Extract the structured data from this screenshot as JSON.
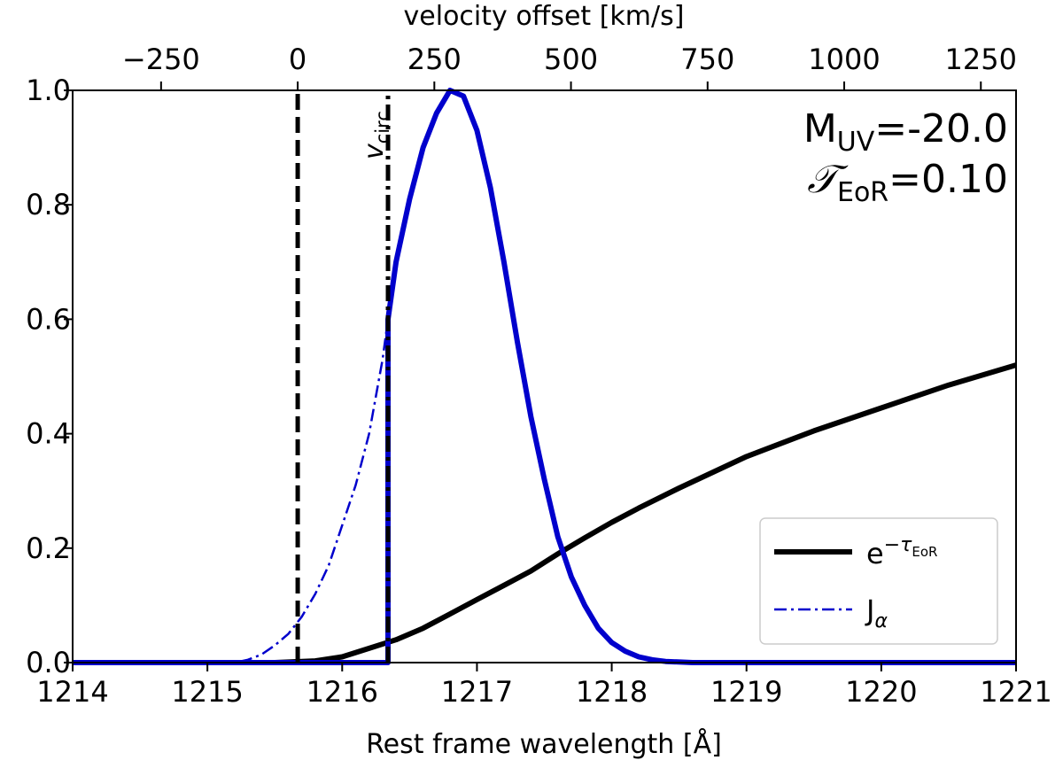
{
  "chart_data": {
    "type": "line",
    "title": "",
    "xlabel": "Rest frame wavelength [Å]",
    "ylabel": "",
    "xlim": [
      1214,
      1221
    ],
    "ylim": [
      0,
      1.0
    ],
    "x_ticks": [
      1214,
      1215,
      1216,
      1217,
      1218,
      1219,
      1220,
      1221
    ],
    "y_ticks": [
      0.0,
      0.2,
      0.4,
      0.6,
      0.8,
      1.0
    ],
    "y_tick_labels": [
      "0.0",
      "0.2",
      "0.4",
      "0.6",
      "0.8",
      "1.0"
    ],
    "top_axis": {
      "label": "velocity offset [km/s]",
      "ticks": [
        -250,
        0,
        250,
        500,
        750,
        1000,
        1250
      ],
      "tick_labels": [
        "−250",
        "0",
        "250",
        "500",
        "750",
        "1000",
        "1250"
      ],
      "systemic_wavelength": 1215.67
    },
    "annotations": {
      "muv_main": "M",
      "muv_sub": "UV",
      "muv_value": "=-20.0",
      "tau_main": "𝒯",
      "tau_sub": "EoR",
      "tau_value": "=0.10",
      "vcirc_main": "v",
      "vcirc_sub": "circ"
    },
    "vlines": [
      {
        "name": "systemic",
        "x": 1215.67,
        "style": "dashed",
        "color": "#000000"
      },
      {
        "name": "vcirc",
        "x": 1216.34,
        "style": "dashdot",
        "color": "#000000"
      }
    ],
    "legend": {
      "position": "bottom-right",
      "entries": [
        {
          "label_main": "e",
          "label_sup": "−τ",
          "label_sub": "EoR",
          "color": "#000000",
          "style": "solid"
        },
        {
          "label_main": "J",
          "label_sub": "α",
          "color": "#0000cc",
          "style": "dashdot"
        }
      ]
    },
    "series": [
      {
        "name": "transmission e^-tau_EoR",
        "color": "#000000",
        "style": "solid",
        "x": [
          1214.0,
          1215.5,
          1215.8,
          1216.0,
          1216.2,
          1216.4,
          1216.6,
          1216.8,
          1217.0,
          1217.2,
          1217.4,
          1217.6,
          1217.8,
          1218.0,
          1218.2,
          1218.5,
          1219.0,
          1219.5,
          1220.0,
          1220.5,
          1221.0
        ],
        "values": [
          0.0,
          0.0,
          0.003,
          0.01,
          0.025,
          0.04,
          0.06,
          0.085,
          0.11,
          0.135,
          0.16,
          0.19,
          0.218,
          0.245,
          0.27,
          0.305,
          0.36,
          0.405,
          0.445,
          0.485,
          0.52
        ]
      },
      {
        "name": "J_alpha intrinsic",
        "color": "#0000cc",
        "style": "dashdot",
        "x": [
          1214.0,
          1215.2,
          1215.3,
          1215.4,
          1215.5,
          1215.6,
          1215.7,
          1215.8,
          1215.9,
          1216.0,
          1216.1,
          1216.2,
          1216.3,
          1216.34
        ],
        "values": [
          0.0,
          0.0,
          0.005,
          0.014,
          0.03,
          0.05,
          0.08,
          0.12,
          0.17,
          0.24,
          0.31,
          0.4,
          0.53,
          0.6
        ]
      },
      {
        "name": "transmitted Lyα profile",
        "color": "#0000cc",
        "style": "solid",
        "x": [
          1214.0,
          1216.34,
          1216.34,
          1216.4,
          1216.5,
          1216.6,
          1216.7,
          1216.8,
          1216.9,
          1217.0,
          1217.1,
          1217.2,
          1217.3,
          1217.4,
          1217.5,
          1217.6,
          1217.7,
          1217.8,
          1217.9,
          1218.0,
          1218.1,
          1218.2,
          1218.3,
          1218.4,
          1218.6,
          1219.0,
          1221.0
        ],
        "values": [
          0.0,
          0.0,
          0.6,
          0.7,
          0.81,
          0.9,
          0.96,
          1.0,
          0.99,
          0.93,
          0.83,
          0.7,
          0.56,
          0.43,
          0.32,
          0.22,
          0.15,
          0.1,
          0.06,
          0.035,
          0.02,
          0.01,
          0.005,
          0.002,
          0.0,
          0.0,
          0.0
        ]
      }
    ]
  }
}
